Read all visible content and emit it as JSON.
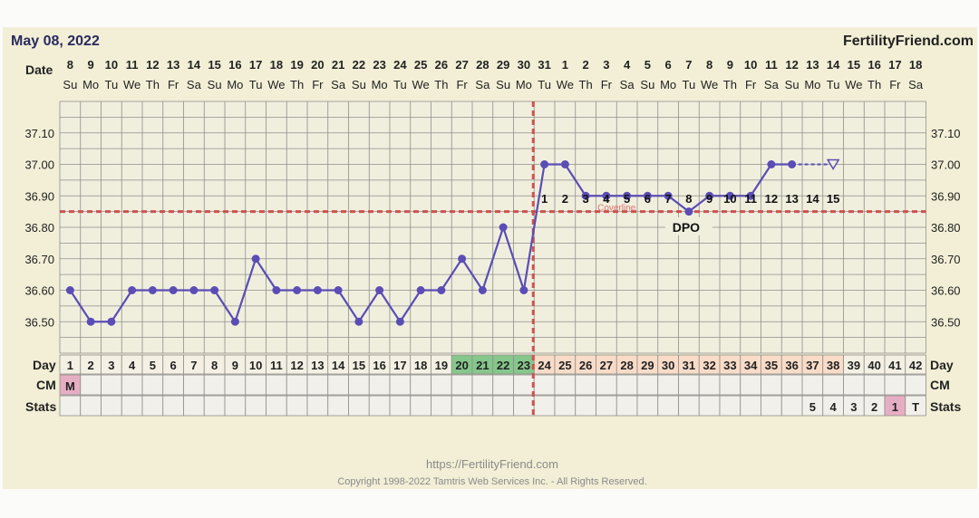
{
  "header": {
    "date": "May 08, 2022",
    "brand": "FertilityFriend.com"
  },
  "row_labels": {
    "date": "Date",
    "day": "Day",
    "cm": "CM",
    "stats": "Stats"
  },
  "footer": {
    "url": "https://FertilityFriend.com",
    "copyright": "Copyright 1998-2022 Tamtris Web Services Inc. - All Rights Reserved."
  },
  "colors": {
    "background": "#f2efd6",
    "plot": "#f0efde",
    "grid": "#8f8e8a",
    "series": "#5b4db5",
    "coverline": "#d05050",
    "fertile": "#86c78c",
    "luteal": "#f9dcc8",
    "menstruation": "#e6aec4",
    "stats_highlight": "#e6aec4"
  },
  "chart_data": {
    "type": "line",
    "x_label": "Day",
    "dates": [
      "8",
      "9",
      "10",
      "11",
      "12",
      "13",
      "14",
      "15",
      "16",
      "17",
      "18",
      "19",
      "20",
      "21",
      "22",
      "23",
      "24",
      "25",
      "26",
      "27",
      "28",
      "29",
      "30",
      "31",
      "1",
      "2",
      "3",
      "4",
      "5",
      "6",
      "7",
      "8",
      "9",
      "10",
      "11",
      "12",
      "13",
      "14",
      "15",
      "16",
      "17",
      "18"
    ],
    "weekdays": [
      "Su",
      "Mo",
      "Tu",
      "We",
      "Th",
      "Fr",
      "Sa",
      "Su",
      "Mo",
      "Tu",
      "We",
      "Th",
      "Fr",
      "Sa",
      "Su",
      "Mo",
      "Tu",
      "We",
      "Th",
      "Fr",
      "Sa",
      "Su",
      "Mo",
      "Tu",
      "We",
      "Th",
      "Fr",
      "Sa",
      "Su",
      "Mo",
      "Tu",
      "We",
      "Th",
      "Fr",
      "Sa",
      "Su",
      "Mo",
      "Tu",
      "We",
      "Th",
      "Fr",
      "Sa"
    ],
    "cycle_days": [
      1,
      2,
      3,
      4,
      5,
      6,
      7,
      8,
      9,
      10,
      11,
      12,
      13,
      14,
      15,
      16,
      17,
      18,
      19,
      20,
      21,
      22,
      23,
      24,
      25,
      26,
      27,
      28,
      29,
      30,
      31,
      32,
      33,
      34,
      35,
      36,
      37,
      38,
      39,
      40,
      41,
      42
    ],
    "series": [
      {
        "values": [
          36.6,
          36.5,
          36.5,
          36.6,
          36.6,
          36.6,
          36.6,
          36.6,
          36.5,
          36.7,
          36.6,
          36.6,
          36.6,
          36.6,
          36.5,
          36.6,
          36.5,
          36.6,
          36.6,
          36.7,
          36.6,
          36.8,
          36.6,
          37.0,
          37.0,
          36.9,
          36.9,
          36.9,
          36.9,
          36.9,
          36.85,
          36.9,
          36.9,
          36.9,
          37.0,
          37.0,
          null,
          null,
          null,
          null,
          null,
          null
        ]
      }
    ],
    "projected": {
      "day": 38,
      "value": 37.0
    },
    "ylim": [
      36.4,
      37.2
    ],
    "y_ticks": [
      "36.50",
      "36.60",
      "36.70",
      "36.80",
      "36.90",
      "37.00",
      "37.10"
    ],
    "coverline": {
      "value": 36.85,
      "label": "Coverline"
    },
    "ovulation_day": 23,
    "dpo_numbers": [
      "1",
      "2",
      "3",
      "4",
      "5",
      "6",
      "7",
      "8",
      "9",
      "10",
      "11",
      "12",
      "13",
      "14",
      "15"
    ],
    "dpo_label": "DPO",
    "fertile_days": [
      20,
      21,
      22,
      23
    ],
    "luteal_days": [
      24,
      38
    ],
    "cm": {
      "day": 1,
      "value": "M"
    },
    "stats": [
      {
        "day": 37,
        "value": "5"
      },
      {
        "day": 38,
        "value": "4"
      },
      {
        "day": 39,
        "value": "3"
      },
      {
        "day": 40,
        "value": "2"
      },
      {
        "day": 41,
        "value": "1",
        "highlight": true
      },
      {
        "day": 42,
        "value": "T"
      }
    ],
    "grid": true
  }
}
